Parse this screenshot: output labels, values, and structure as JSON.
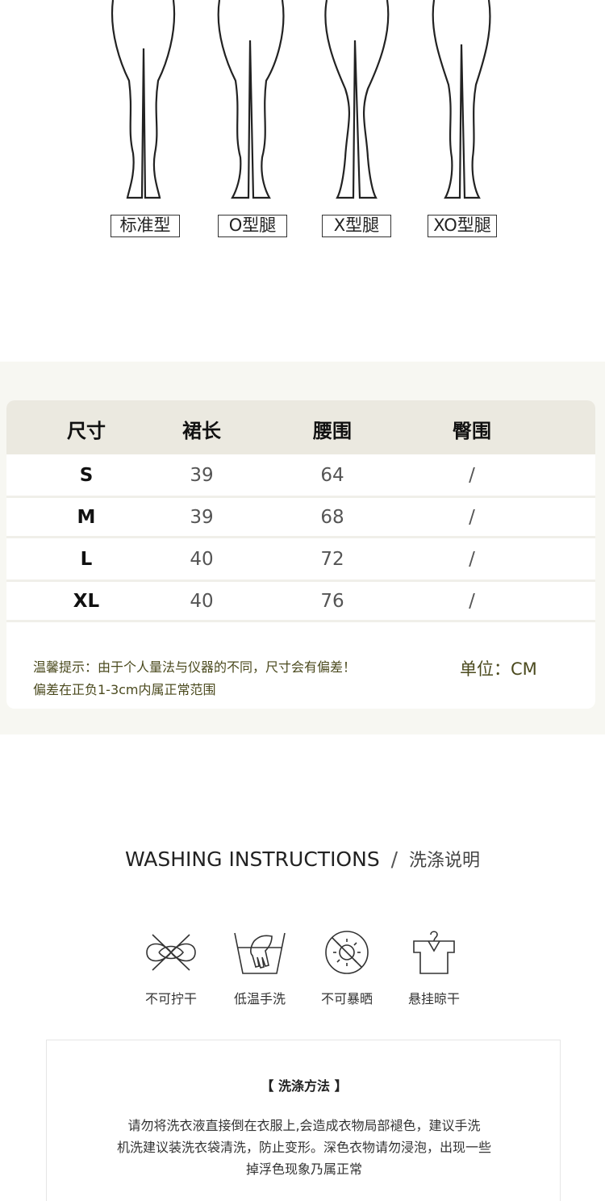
{
  "leg_types": [
    {
      "label": "标准型",
      "icon": "standard-legs"
    },
    {
      "label": "O型腿",
      "icon": "o-legs"
    },
    {
      "label": "X型腿",
      "icon": "x-legs"
    },
    {
      "label": "XO型腿",
      "icon": "xo-legs"
    }
  ],
  "size_table": {
    "headers": [
      "尺寸",
      "裙长",
      "腰围",
      "臀围"
    ],
    "rows": [
      [
        "S",
        "39",
        "64",
        "/"
      ],
      [
        "M",
        "39",
        "68",
        "/"
      ],
      [
        "L",
        "40",
        "72",
        "/"
      ],
      [
        "XL",
        "40",
        "76",
        "/"
      ]
    ],
    "note_line1": "温馨提示：由于个人量法与仪器的不同，尺寸会有偏差！",
    "note_line2": "偏差在正负1-3cm内属正常范围",
    "unit": "单位：CM",
    "header_bg": "#ebe9e0",
    "note_color": "#4b4a1e"
  },
  "washing": {
    "title_en": "WASHING INSTRUCTIONS",
    "separator": "/",
    "title_cn": "洗涤说明",
    "icons": [
      {
        "label": "不可拧干",
        "icon": "no-wring-icon"
      },
      {
        "label": "低温手洗",
        "icon": "hand-wash-icon"
      },
      {
        "label": "不可暴晒",
        "icon": "no-sun-icon"
      },
      {
        "label": "悬挂晾干",
        "icon": "hang-dry-icon"
      }
    ],
    "method_title": "【 洗涤方法 】",
    "method_lines": [
      "请勿将洗衣液直接倒在衣服上,会造成衣物局部褪色，建议手洗",
      "机洗建议装洗衣袋清洗，防止变形。深色衣物请勿浸泡，出现一些",
      "掉浮色现象乃属正常"
    ]
  }
}
